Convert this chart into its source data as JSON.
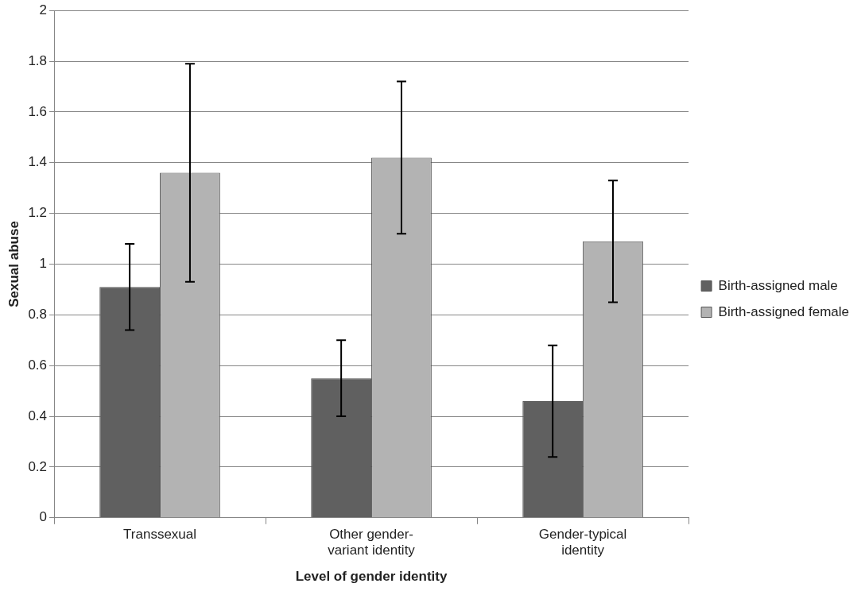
{
  "chart_data": {
    "type": "bar",
    "xlabel": "Level of gender identity",
    "ylabel": "Sexual abuse",
    "categories": [
      "Transsexual",
      "Other gender-variant identity",
      "Gender-typical identity"
    ],
    "series": [
      {
        "name": "Birth-assigned male",
        "color": "#606060",
        "values": [
          0.91,
          0.55,
          0.46
        ],
        "errors": [
          [
            0.74,
            1.08
          ],
          [
            0.4,
            0.7
          ],
          [
            0.24,
            0.68
          ]
        ]
      },
      {
        "name": "Birth-assigned female",
        "color": "#b3b3b3",
        "values": [
          1.36,
          1.42,
          1.09
        ],
        "errors": [
          [
            0.93,
            1.79
          ],
          [
            1.12,
            1.72
          ],
          [
            0.85,
            1.33
          ]
        ]
      }
    ],
    "ylim": [
      0,
      2
    ],
    "yticks": [
      0,
      0.2,
      0.4,
      0.6,
      0.8,
      1,
      1.2,
      1.4,
      1.6,
      1.8,
      2
    ],
    "grid": "y",
    "legend": "right"
  }
}
